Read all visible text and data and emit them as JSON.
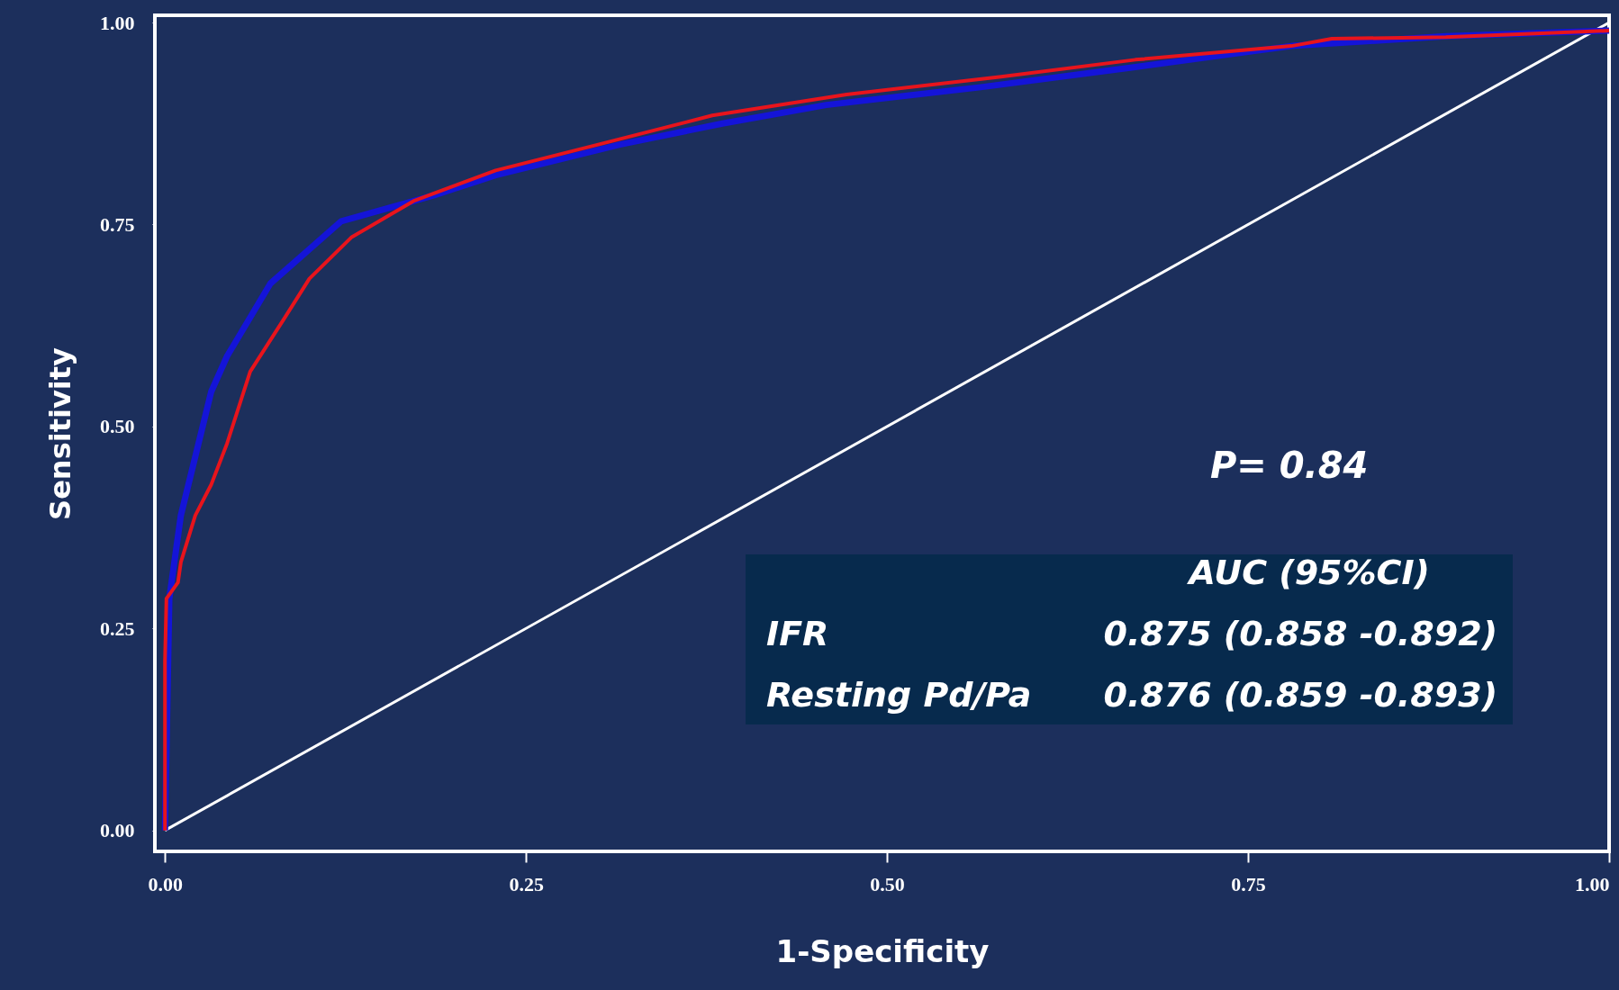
{
  "chart_data": {
    "type": "line",
    "xlabel": "1-Specificity",
    "ylabel": "Sensitivity",
    "xlim": [
      -0.007,
      1.0
    ],
    "ylim": [
      -0.026,
      1.009
    ],
    "xticks": [
      {
        "value": 0,
        "label": "0.00"
      },
      {
        "value": 0.25,
        "label": "0.25"
      },
      {
        "value": 0.5,
        "label": "0.50"
      },
      {
        "value": 0.75,
        "label": "0.75"
      },
      {
        "value": 1,
        "label": "1.00"
      }
    ],
    "yticks": [
      {
        "value": 0,
        "label": "0.00"
      },
      {
        "value": 0.25,
        "label": "0.25"
      },
      {
        "value": 0.5,
        "label": "0.50"
      },
      {
        "value": 0.75,
        "label": "0.75"
      },
      {
        "value": 1,
        "label": "1.00"
      }
    ],
    "grid": false,
    "marker": "none",
    "line_style": "solid",
    "series": [
      {
        "color": "#ffffff",
        "x": [
          0,
          1
        ],
        "values": [
          0,
          1
        ]
      },
      {
        "color": "#1414d8",
        "x": [
          0,
          0.003,
          0.011,
          0.032,
          0.043,
          0.073,
          0.122,
          0.186,
          0.229,
          0.315,
          0.386,
          0.458,
          0.565,
          0.672,
          0.78,
          0.887,
          1
        ],
        "values": [
          0,
          0.287,
          0.39,
          0.543,
          0.587,
          0.677,
          0.754,
          0.786,
          0.811,
          0.849,
          0.875,
          0.898,
          0.92,
          0.945,
          0.971,
          0.983,
          0.99
        ]
      },
      {
        "color": "#e8141c",
        "x": [
          0,
          0,
          0.001,
          0.009,
          0.011,
          0.021,
          0.032,
          0.043,
          0.059,
          0.082,
          0.1,
          0.129,
          0.172,
          0.229,
          0.3,
          0.379,
          0.472,
          0.579,
          0.672,
          0.78,
          0.808,
          0.887,
          1
        ],
        "values": [
          0,
          0.21,
          0.287,
          0.307,
          0.332,
          0.39,
          0.428,
          0.479,
          0.568,
          0.632,
          0.683,
          0.734,
          0.779,
          0.817,
          0.849,
          0.885,
          0.911,
          0.933,
          0.954,
          0.971,
          0.98,
          0.982,
          0.99
        ]
      }
    ],
    "annotations": [
      "P= 0.84",
      "AUC (95%CI)",
      "IFR",
      "0.875 (0.858 -0.892)",
      "Resting Pd/Pa",
      "0.876 (0.859 -0.893)"
    ]
  }
}
